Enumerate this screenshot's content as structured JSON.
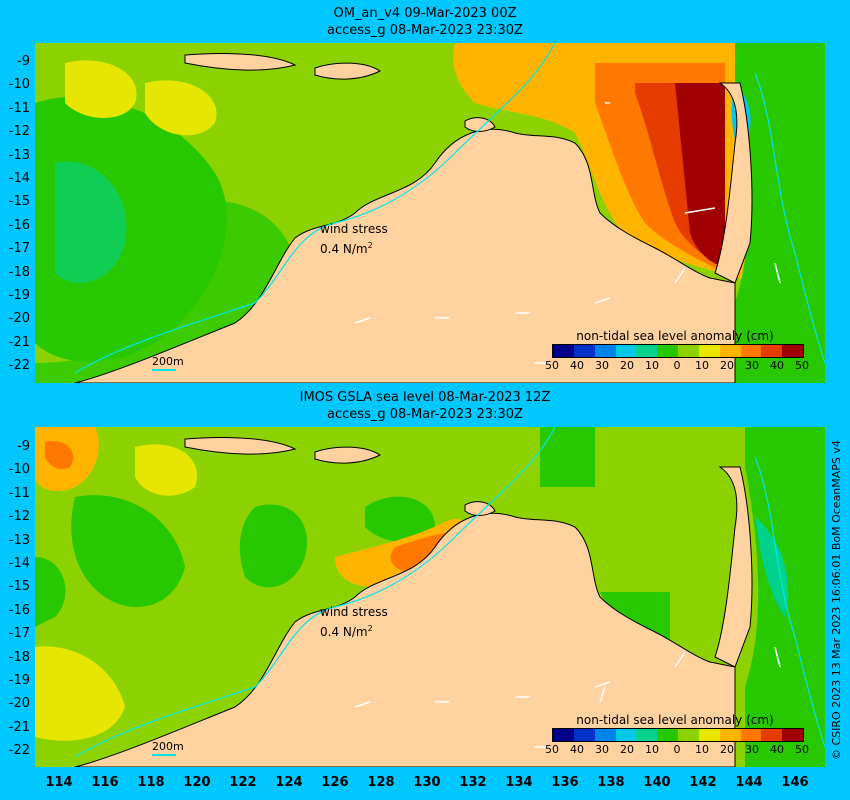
{
  "panels": [
    {
      "title_line1": "OM_an_v4  09-Mar-2023 00Z",
      "title_line2": "access_g 08-Mar-2023 23:30Z",
      "wind_label": "wind stress",
      "wind_value": "0.4 N/m",
      "wind_exp": "2",
      "scale_label": "200m",
      "colorbar_title": "non-tidal sea level anomaly (cm)"
    },
    {
      "title_line1": "IMOS GSLA sea level  08-Mar-2023 12Z",
      "title_line2": "access_g 08-Mar-2023 23:30Z",
      "wind_label": "wind stress",
      "wind_value": "0.4 N/m",
      "wind_exp": "2",
      "scale_label": "200m",
      "colorbar_title": "non-tidal sea level anomaly (cm)"
    }
  ],
  "colorbar": {
    "ticks": [
      "50",
      "40",
      "30",
      "20",
      "10",
      "0",
      "10",
      "20",
      "30",
      "40",
      "50"
    ],
    "colors": [
      "#00008c",
      "#0032c8",
      "#0082e6",
      "#00c8e6",
      "#00d28c",
      "#28c800",
      "#8cd200",
      "#e6e600",
      "#ffb400",
      "#ff7800",
      "#e63c00",
      "#a00000"
    ]
  },
  "y_axis_labels": [
    "-9",
    "-10",
    "-11",
    "-12",
    "-13",
    "-14",
    "-15",
    "-16",
    "-17",
    "-18",
    "-19",
    "-20",
    "-21",
    "-22"
  ],
  "x_axis_labels": [
    "114",
    "116",
    "118",
    "120",
    "122",
    "124",
    "126",
    "128",
    "130",
    "132",
    "134",
    "136",
    "138",
    "140",
    "142",
    "144",
    "146"
  ],
  "credit": "© CSIRO 2023   13 Mar 2023 16:06:01 BoM OceanMAPS v4",
  "colors": {
    "background": "#00c8ff",
    "land": "#ffd2a0",
    "shelf_line": "#00e6e6"
  }
}
